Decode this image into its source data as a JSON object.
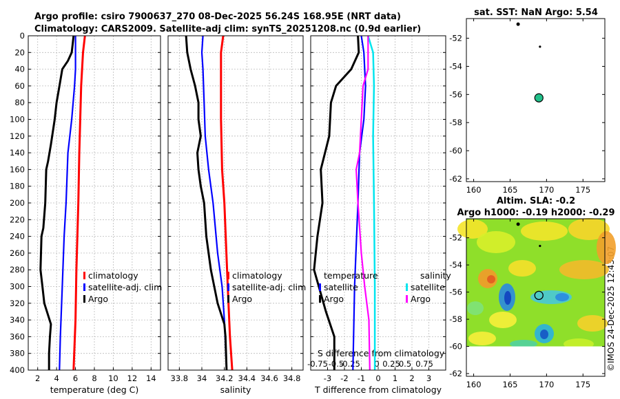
{
  "header": {
    "line1": "Argo profile: csiro 7900637_270 08-Dec-2025 56.24S 168.95E (NRT data)",
    "line2": "Climatology: CARS2009. Satellite-adj clim: synTS_20251208.nc (0.9d earlier)"
  },
  "footer": {
    "stamp": "©IMOS 24-Dec-2025 12:43:07"
  },
  "depth_ticks": [
    "0",
    "20",
    "40",
    "60",
    "80",
    "100",
    "120",
    "140",
    "160",
    "180",
    "200",
    "220",
    "240",
    "260",
    "280",
    "300",
    "320",
    "340",
    "360",
    "380",
    "400"
  ],
  "colors": {
    "climatology": "#ff0000",
    "satellite": "#0000ff",
    "argo": "#000000",
    "sal_satellite": "#00e5ee",
    "sal_argo": "#ff00ff",
    "zero_line": "#888888"
  },
  "chart_data": [
    {
      "id": "temperature",
      "type": "line",
      "xlabel": "temperature (deg C)",
      "ylabel": "",
      "xlim": [
        1,
        15
      ],
      "ylim": [
        400,
        0
      ],
      "xticks": [
        2,
        4,
        6,
        8,
        10,
        12,
        14
      ],
      "xtick_labels": [
        "2",
        "4",
        "6",
        "8",
        "10",
        "12",
        "14"
      ],
      "legend": {
        "position": "right",
        "labels": [
          "climatology",
          "satellite-adj. clim",
          "Argo"
        ]
      },
      "series": [
        {
          "name": "climatology",
          "points": [
            [
              7.0,
              0
            ],
            [
              6.8,
              20
            ],
            [
              6.6,
              60
            ],
            [
              6.4,
              140
            ],
            [
              6.3,
              200
            ],
            [
              6.1,
              280
            ],
            [
              6.0,
              340
            ],
            [
              5.8,
              400
            ]
          ]
        },
        {
          "name": "satellite-adj. clim",
          "points": [
            [
              6.0,
              0
            ],
            [
              6.0,
              20
            ],
            [
              6.0,
              40
            ],
            [
              5.9,
              60
            ],
            [
              5.6,
              100
            ],
            [
              5.2,
              140
            ],
            [
              5.0,
              200
            ],
            [
              4.8,
              240
            ],
            [
              4.6,
              300
            ],
            [
              4.4,
              360
            ],
            [
              4.3,
              400
            ]
          ]
        },
        {
          "name": "Argo",
          "points": [
            [
              5.8,
              0
            ],
            [
              5.7,
              10
            ],
            [
              5.6,
              20
            ],
            [
              5.2,
              30
            ],
            [
              4.6,
              40
            ],
            [
              4.3,
              60
            ],
            [
              4.0,
              80
            ],
            [
              3.8,
              100
            ],
            [
              3.4,
              130
            ],
            [
              3.1,
              150
            ],
            [
              2.9,
              160
            ],
            [
              2.8,
              200
            ],
            [
              2.6,
              230
            ],
            [
              2.4,
              240
            ],
            [
              2.3,
              280
            ],
            [
              2.5,
              300
            ],
            [
              2.7,
              320
            ],
            [
              3.4,
              345
            ],
            [
              3.3,
              360
            ],
            [
              3.2,
              380
            ],
            [
              3.2,
              400
            ]
          ]
        }
      ]
    },
    {
      "id": "salinity",
      "type": "line",
      "xlabel": "salinity",
      "ylabel": "",
      "xlim": [
        33.7,
        34.9
      ],
      "ylim": [
        400,
        0
      ],
      "xticks": [
        33.8,
        34.0,
        34.2,
        34.4,
        34.6,
        34.8
      ],
      "xtick_labels": [
        "33.8",
        "34",
        "34.2",
        "34.4",
        "34.6",
        "34.8"
      ],
      "legend": {
        "position": "right",
        "labels": [
          "climatology",
          "satellite-adj. clim",
          "Argo"
        ]
      },
      "series": [
        {
          "name": "climatology",
          "points": [
            [
              34.19,
              0
            ],
            [
              34.17,
              20
            ],
            [
              34.17,
              100
            ],
            [
              34.18,
              160
            ],
            [
              34.2,
              200
            ],
            [
              34.23,
              300
            ],
            [
              34.25,
              360
            ],
            [
              34.27,
              400
            ]
          ]
        },
        {
          "name": "satellite-adj. clim",
          "points": [
            [
              34.01,
              0
            ],
            [
              34.0,
              20
            ],
            [
              34.01,
              40
            ],
            [
              34.02,
              80
            ],
            [
              34.03,
              120
            ],
            [
              34.06,
              160
            ],
            [
              34.1,
              200
            ],
            [
              34.14,
              260
            ],
            [
              34.18,
              300
            ],
            [
              34.2,
              340
            ],
            [
              34.22,
              400
            ]
          ]
        },
        {
          "name": "Argo",
          "points": [
            [
              33.86,
              0
            ],
            [
              33.87,
              20
            ],
            [
              33.9,
              40
            ],
            [
              33.94,
              60
            ],
            [
              33.97,
              80
            ],
            [
              33.97,
              100
            ],
            [
              33.99,
              120
            ],
            [
              33.96,
              140
            ],
            [
              33.97,
              160
            ],
            [
              33.99,
              180
            ],
            [
              34.02,
              200
            ],
            [
              34.04,
              240
            ],
            [
              34.08,
              280
            ],
            [
              34.11,
              300
            ],
            [
              34.14,
              320
            ],
            [
              34.2,
              345
            ],
            [
              34.21,
              360
            ],
            [
              34.22,
              400
            ]
          ]
        }
      ]
    },
    {
      "id": "differences",
      "type": "line",
      "xlabel": "T difference from climatology",
      "x2label": "S difference from climatology",
      "ylabel": "",
      "xlim": [
        -4,
        4
      ],
      "ylim": [
        400,
        0
      ],
      "xticks": [
        -3,
        -2,
        -1,
        0,
        1,
        2,
        3
      ],
      "xtick_labels": [
        "-3",
        "-2",
        "-1",
        "0",
        "1",
        "2",
        "3"
      ],
      "x2tick_labels": [
        "-0.75",
        "-0.5",
        "-0.25",
        "0",
        "0.25",
        "0.5",
        "0.75"
      ],
      "legend_temperature": {
        "position": "left",
        "title": "temperature",
        "labels": [
          "satellite",
          "Argo"
        ]
      },
      "legend_salinity": {
        "position": "right",
        "title": "salinity",
        "labels": [
          "satellite",
          "Argo"
        ]
      },
      "series": [
        {
          "name": "temperature satellite",
          "points": [
            [
              -1.0,
              0
            ],
            [
              -0.85,
              20
            ],
            [
              -0.75,
              60
            ],
            [
              -0.85,
              100
            ],
            [
              -1.1,
              140
            ],
            [
              -1.2,
              200
            ],
            [
              -1.4,
              300
            ],
            [
              -1.5,
              400
            ]
          ]
        },
        {
          "name": "temperature Argo",
          "points": [
            [
              -1.2,
              0
            ],
            [
              -1.15,
              20
            ],
            [
              -1.6,
              40
            ],
            [
              -2.5,
              60
            ],
            [
              -2.8,
              80
            ],
            [
              -2.9,
              120
            ],
            [
              -3.4,
              160
            ],
            [
              -3.3,
              200
            ],
            [
              -3.6,
              240
            ],
            [
              -3.8,
              280
            ],
            [
              -3.1,
              330
            ],
            [
              -2.6,
              360
            ],
            [
              -2.6,
              400
            ]
          ]
        },
        {
          "name": "salinity satellite",
          "points": [
            [
              -0.6,
              0
            ],
            [
              -0.3,
              20
            ],
            [
              -0.25,
              60
            ],
            [
              -0.3,
              120
            ],
            [
              -0.25,
              200
            ],
            [
              -0.2,
              300
            ],
            [
              -0.2,
              400
            ]
          ]
        },
        {
          "name": "salinity Argo",
          "points": [
            [
              -0.6,
              0
            ],
            [
              -0.6,
              40
            ],
            [
              -0.9,
              60
            ],
            [
              -1.0,
              100
            ],
            [
              -1.1,
              140
            ],
            [
              -1.3,
              160
            ],
            [
              -1.2,
              200
            ],
            [
              -1.0,
              260
            ],
            [
              -0.8,
              300
            ],
            [
              -0.55,
              340
            ],
            [
              -0.5,
              400
            ]
          ]
        }
      ]
    },
    {
      "id": "sst_map",
      "type": "scatter",
      "title": "sat. SST: NaN Argo: 5.54",
      "xlim": [
        159,
        178
      ],
      "ylim": [
        -62.2,
        -50.6
      ],
      "xticks": [
        160,
        165,
        170,
        175
      ],
      "yticks": [
        -52,
        -54,
        -56,
        -58,
        -60,
        -62
      ],
      "xtick_labels": [
        "160",
        "165",
        "170",
        "175"
      ],
      "ytick_labels": [
        "-52",
        "-54",
        "-56",
        "-58",
        "-60",
        "-62"
      ],
      "points": [
        {
          "lon": 166.1,
          "lat": -51.0,
          "label": "island"
        },
        {
          "lon": 169.1,
          "lat": -52.6,
          "label": "island"
        },
        {
          "lon": 168.95,
          "lat": -56.24,
          "label": "Argo",
          "value": 5.54
        }
      ]
    },
    {
      "id": "sla_map",
      "type": "heatmap",
      "title": "Altim. SLA: -0.2",
      "subtitle": "Argo h1000: -0.19 h2000: -0.29",
      "xlim": [
        159,
        178
      ],
      "ylim": [
        -62.2,
        -50.6
      ],
      "xticks": [
        160,
        165,
        170,
        175
      ],
      "yticks": [
        -52,
        -54,
        -56,
        -58,
        -60,
        -62
      ],
      "xtick_labels": [
        "160",
        "165",
        "170",
        "175"
      ],
      "ytick_labels": [
        "-52",
        "-54",
        "-56",
        "-58",
        "-60",
        "-62"
      ],
      "data_extent_lat": [
        -60,
        -50.6
      ],
      "argo": {
        "lon": 168.95,
        "lat": -56.24
      }
    }
  ]
}
